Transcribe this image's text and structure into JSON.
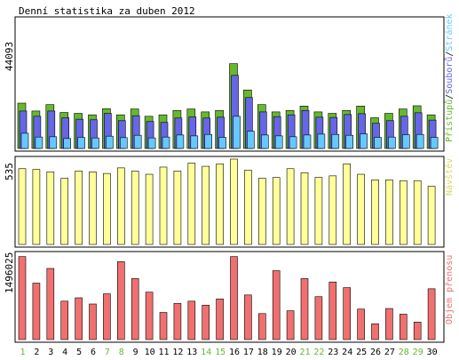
{
  "title": "Denní statistika za duben 2012",
  "colors": {
    "hits": "#66b82e",
    "files": "#6666e6",
    "pages": "#66c8ff",
    "visits": "#ffff99",
    "kbytes": "#f07070",
    "weekend": "#66b82e",
    "weekday": "#000000",
    "frame": "#000000",
    "background": "#ffffff"
  },
  "chart_data": [
    {
      "type": "bar",
      "panel": "top",
      "ylabel": "44093",
      "legend_text": [
        "Přístupů",
        "/",
        "Souborů",
        "/",
        "Stránek"
      ],
      "legend_placement": "right-vertical",
      "ylim": [
        0,
        44093
      ],
      "categories": [
        "1",
        "2",
        "3",
        "4",
        "5",
        "6",
        "7",
        "8",
        "9",
        "10",
        "11",
        "12",
        "13",
        "14",
        "15",
        "16",
        "17",
        "18",
        "19",
        "20",
        "21",
        "22",
        "23",
        "24",
        "25",
        "26",
        "27",
        "28",
        "29",
        "30"
      ],
      "series": [
        {
          "name": "Přístupů",
          "values": [
            15500,
            12800,
            15000,
            12300,
            12000,
            11500,
            13600,
            11500,
            13500,
            11000,
            11500,
            13000,
            13500,
            12500,
            13000,
            29000,
            20000,
            15000,
            12500,
            13000,
            14500,
            12500,
            12000,
            13000,
            14500,
            10500,
            12000,
            13500,
            14600,
            11500
          ]
        },
        {
          "name": "Souborů",
          "values": [
            12800,
            11000,
            12800,
            10500,
            10000,
            9800,
            12000,
            9500,
            11200,
            9200,
            8900,
            10400,
            10800,
            10400,
            10700,
            25000,
            17400,
            12500,
            10900,
            11500,
            13000,
            10700,
            10600,
            11600,
            11900,
            8600,
            9500,
            11000,
            12200,
            9700
          ]
        },
        {
          "name": "Stránek",
          "values": [
            5200,
            3900,
            4000,
            3400,
            3800,
            3600,
            4200,
            3700,
            4500,
            3600,
            3900,
            4600,
            4300,
            4800,
            3800,
            11000,
            5900,
            4600,
            4300,
            4000,
            4600,
            4900,
            4800,
            4500,
            5000,
            3800,
            3900,
            4700,
            4800,
            3800
          ]
        }
      ]
    },
    {
      "type": "bar",
      "panel": "middle",
      "ylabel": "535",
      "legend_text": [
        "Návštěv"
      ],
      "legend_placement": "right-vertical",
      "ylim": [
        0,
        535
      ],
      "categories": [
        "1",
        "2",
        "3",
        "4",
        "5",
        "6",
        "7",
        "8",
        "9",
        "10",
        "11",
        "12",
        "13",
        "14",
        "15",
        "16",
        "17",
        "18",
        "19",
        "20",
        "21",
        "22",
        "23",
        "24",
        "25",
        "26",
        "27",
        "28",
        "29",
        "30"
      ],
      "series": [
        {
          "name": "Návštěv",
          "values": [
            475,
            470,
            455,
            415,
            460,
            455,
            445,
            480,
            460,
            440,
            485,
            460,
            510,
            490,
            505,
            535,
            465,
            415,
            420,
            475,
            450,
            420,
            430,
            505,
            440,
            405,
            405,
            400,
            400,
            365
          ]
        }
      ]
    },
    {
      "type": "bar",
      "panel": "bottom",
      "ylabel": "1496025",
      "legend_text": [
        "Objem přenosu"
      ],
      "legend_placement": "right-vertical",
      "ylim": [
        0,
        1496025
      ],
      "categories": [
        "1",
        "2",
        "3",
        "4",
        "5",
        "6",
        "7",
        "8",
        "9",
        "10",
        "11",
        "12",
        "13",
        "14",
        "15",
        "16",
        "17",
        "18",
        "19",
        "20",
        "21",
        "22",
        "23",
        "24",
        "25",
        "26",
        "27",
        "28",
        "29",
        "30"
      ],
      "series": [
        {
          "name": "Objem přenosu",
          "values": [
            1470000,
            1000000,
            1260000,
            680000,
            740000,
            630000,
            810000,
            1380000,
            1080000,
            840000,
            480000,
            640000,
            680000,
            610000,
            720000,
            1470000,
            790000,
            460000,
            1220000,
            510000,
            1080000,
            760000,
            1020000,
            920000,
            540000,
            280000,
            550000,
            450000,
            310000,
            900000
          ]
        }
      ]
    }
  ],
  "xaxis": {
    "labels": [
      "1",
      "2",
      "3",
      "4",
      "5",
      "6",
      "7",
      "8",
      "9",
      "10",
      "11",
      "12",
      "13",
      "14",
      "15",
      "16",
      "17",
      "18",
      "19",
      "20",
      "21",
      "22",
      "23",
      "24",
      "25",
      "26",
      "27",
      "28",
      "29",
      "30"
    ],
    "weekend": [
      true,
      false,
      false,
      false,
      false,
      false,
      true,
      true,
      false,
      false,
      false,
      false,
      false,
      true,
      true,
      false,
      false,
      false,
      false,
      false,
      true,
      true,
      false,
      false,
      false,
      false,
      false,
      true,
      true,
      false
    ]
  }
}
